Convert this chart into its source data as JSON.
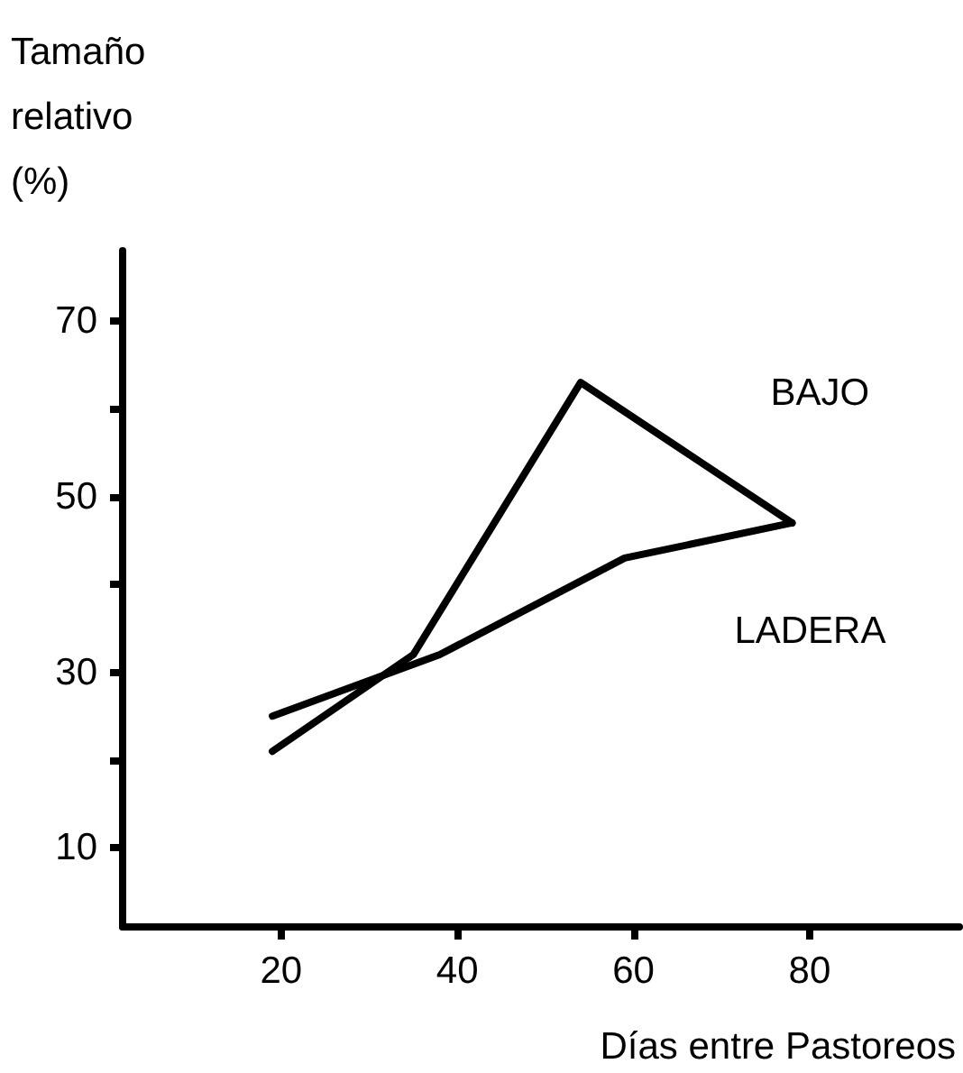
{
  "chart_data": {
    "type": "line",
    "ylabel": "Tamaño\nrelativo\n(%)",
    "xlabel": "Días entre Pastoreos",
    "xlim": [
      2,
      97
    ],
    "xticks": [
      20,
      40,
      60,
      80
    ],
    "ylim": [
      1,
      78
    ],
    "yticks": [
      10,
      {
        "value": 20,
        "label": null
      },
      30,
      {
        "value": 40,
        "label": null
      },
      50,
      {
        "value": 60,
        "label": null
      },
      70
    ],
    "grid": false,
    "legend": false,
    "marker": "none",
    "line_style": "solid",
    "series": [
      {
        "name": "BAJO",
        "color": "#000000",
        "x": [
          19,
          35,
          54,
          78
        ],
        "values": [
          21,
          32,
          63,
          47
        ]
      },
      {
        "name": "LADERA",
        "color": "#000000",
        "x": [
          19,
          38,
          59,
          78
        ],
        "values": [
          25,
          32,
          43,
          47
        ]
      }
    ]
  }
}
